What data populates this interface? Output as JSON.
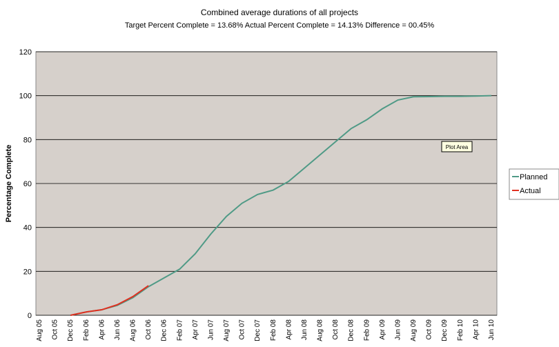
{
  "chart_data": {
    "type": "line",
    "title": "Combined average durations of all projects",
    "subtitle": "Target Percent Complete = 13.68%   Actual Percent Complete = 14.13%   Difference = 00.45%",
    "y_label": "Percentage Complete",
    "annotation": "Plot Area",
    "categories": [
      "Aug 05",
      "Oct 05",
      "Dec 05",
      "Feb 06",
      "Apr 06",
      "Jun 06",
      "Aug 06",
      "Oct 06",
      "Dec 06",
      "Feb 07",
      "Apr 07",
      "Jun 07",
      "Aug 07",
      "Oct 07",
      "Dec 07",
      "Feb 08",
      "Apr 08",
      "Jun 08",
      "Aug 08",
      "Oct 08",
      "Dec 08",
      "Feb 09",
      "Apr 09",
      "Jun 09",
      "Aug 09",
      "Oct 09",
      "Dec 09",
      "Feb 10",
      "Apr 10",
      "Jun 10"
    ],
    "series": [
      {
        "name": "Planned",
        "color": "#4f9a86",
        "values": [
          null,
          null,
          0,
          1.5,
          2.5,
          4.5,
          8,
          13,
          17,
          21,
          28,
          37,
          45,
          51,
          55,
          57,
          61,
          67,
          73,
          79,
          85,
          89,
          94,
          98,
          99.5,
          99.6,
          99.7,
          99.7,
          99.8,
          100
        ]
      },
      {
        "name": "Actual",
        "color": "#e03020",
        "values": [
          null,
          null,
          0,
          1.5,
          2.5,
          4.8,
          8.5,
          13.5,
          null,
          null,
          null,
          null,
          null,
          null,
          null,
          null,
          null,
          null,
          null,
          null,
          null,
          null,
          null,
          null,
          null,
          null,
          null,
          null,
          null,
          null
        ]
      }
    ],
    "ylim": [
      0,
      120
    ],
    "yticks": [
      0,
      20,
      40,
      60,
      80,
      100,
      120
    ],
    "grid": true,
    "legend": "right"
  }
}
